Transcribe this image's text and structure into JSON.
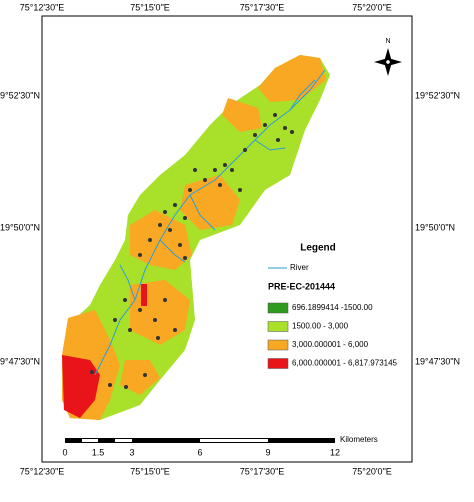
{
  "map": {
    "top_labels": [
      "75°12'30\"E",
      "75°15'0\"E",
      "75°17'30\"E",
      "75°20'0\"E"
    ],
    "bottom_labels": [
      "75°12'30\"E",
      "75°15'0\"E",
      "75°17'30\"E",
      "75°20'0\"E"
    ],
    "left_labels": [
      "19°52'30\"N",
      "19°50'0\"N",
      "19°47'30\"N"
    ],
    "right_labels": [
      "19°52'30\"N",
      "19°50'0\"N",
      "19°47'30\"N"
    ],
    "north": "N",
    "legend": {
      "title": "Legend",
      "river": "River",
      "layer": "PRE-EC-201444",
      "classes": [
        {
          "label": "696.1899414 -1500.00",
          "color": "#2e9a1e"
        },
        {
          "label": "1500.00 - 3,000",
          "color": "#a8e02a"
        },
        {
          "label": "3,000.000001 - 6,000",
          "color": "#f8a823"
        },
        {
          "label": "6,000.000001 - 6,817.973145",
          "color": "#e8141a"
        }
      ]
    },
    "scale": {
      "labels": [
        "0",
        "1.5",
        "3",
        "6",
        "9",
        "12"
      ],
      "unit": "Kilometers"
    }
  }
}
